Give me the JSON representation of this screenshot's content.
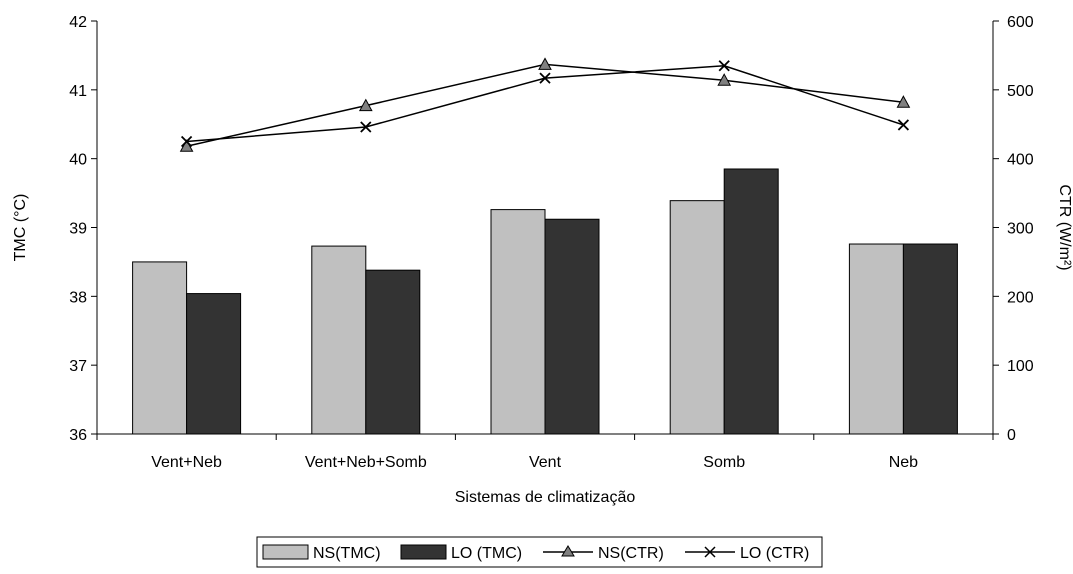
{
  "chart_data": {
    "type": "bar",
    "title": "",
    "xlabel": "Sistemas de climatização",
    "ylabel": "TMC (°C)",
    "y2label": "CTR (W/m²)",
    "categories": [
      "Vent+Neb",
      "Vent+Neb+Somb",
      "Vent",
      "Somb",
      "Neb"
    ],
    "ylim": [
      36,
      42
    ],
    "yticks": [
      "36",
      "37",
      "38",
      "39",
      "40",
      "41",
      "42"
    ],
    "y2lim": [
      0,
      600
    ],
    "y2ticks": [
      "0",
      "100",
      "200",
      "300",
      "400",
      "500",
      "600"
    ],
    "grid": false,
    "legend_position": "bottom",
    "bar_series": [
      {
        "name": "NS(TMC)",
        "color": "#c0c0c0",
        "values": [
          38.5,
          38.73,
          39.26,
          39.39,
          38.76
        ]
      },
      {
        "name": "LO (TMC)",
        "color": "#333333",
        "values": [
          38.04,
          38.38,
          39.12,
          39.85,
          38.76
        ]
      }
    ],
    "line_series": [
      {
        "name": "NS(CTR)",
        "marker": "triangle",
        "axis": "y2",
        "color": "#000000",
        "values": [
          418,
          477,
          537,
          514,
          482
        ]
      },
      {
        "name": "LO (CTR)",
        "marker": "x",
        "axis": "y2",
        "color": "#000000",
        "values": [
          425,
          446,
          517,
          535,
          449
        ]
      }
    ]
  }
}
